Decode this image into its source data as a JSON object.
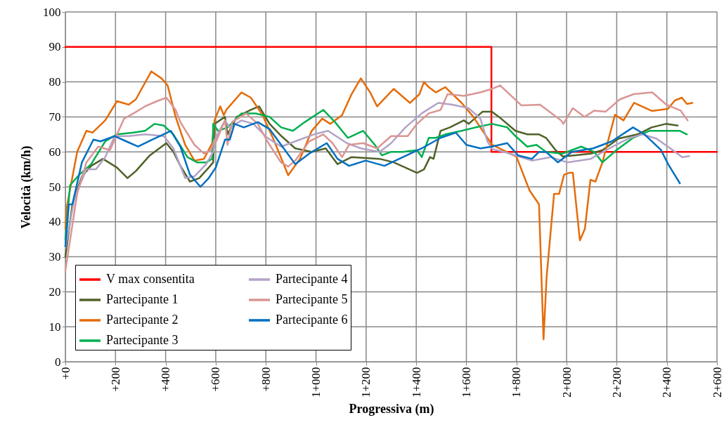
{
  "chart_data": {
    "type": "line",
    "xlabel": "Progressiva (m)",
    "ylabel": "Velocità (km/h)",
    "xlim": [
      0,
      2600
    ],
    "ylim": [
      0,
      100
    ],
    "xticks": [
      {
        "value": 0,
        "label": "+0"
      },
      {
        "value": 200,
        "label": "+200"
      },
      {
        "value": 400,
        "label": "+400"
      },
      {
        "value": 600,
        "label": "+600"
      },
      {
        "value": 800,
        "label": "+800"
      },
      {
        "value": 1000,
        "label": "1+000"
      },
      {
        "value": 1200,
        "label": "1+200"
      },
      {
        "value": 1400,
        "label": "1+400"
      },
      {
        "value": 1600,
        "label": "1+600"
      },
      {
        "value": 1800,
        "label": "1+800"
      },
      {
        "value": 2000,
        "label": "2+000"
      },
      {
        "value": 2200,
        "label": "2+200"
      },
      {
        "value": 2400,
        "label": "2+400"
      },
      {
        "value": 2600,
        "label": "2+600"
      }
    ],
    "yticks": [
      0,
      10,
      20,
      30,
      40,
      50,
      60,
      70,
      80,
      90,
      100
    ],
    "grid": true,
    "legend": "bottom left",
    "line_style": "solid",
    "series": [
      {
        "name": "V max consentita",
        "color": "#ff0000",
        "x": [
          0,
          1700,
          1700,
          2600
        ],
        "values": [
          90,
          90,
          60,
          60
        ]
      },
      {
        "name": "Partecipante 1",
        "color": "#4f6228",
        "x": [
          0,
          28,
          66,
          103,
          150,
          206,
          248,
          281,
          337,
          403,
          431,
          459,
          497,
          534,
          572,
          590,
          595,
          637,
          647,
          684,
          740,
          773,
          815,
          862,
          917,
          983,
          1039,
          1086,
          1142,
          1188,
          1254,
          1310,
          1357,
          1403,
          1431,
          1455,
          1469,
          1497,
          1534,
          1590,
          1609,
          1665,
          1702,
          1730,
          1796,
          1843,
          1890,
          1918,
          1956,
          1984,
          2030,
          2096,
          2143,
          2208,
          2283,
          2339,
          2396,
          2443
        ],
        "values": [
          30,
          45,
          53,
          56,
          58,
          55.5,
          52.5,
          54.5,
          59,
          62.5,
          60,
          56,
          51.5,
          52.5,
          55.5,
          57,
          68,
          70,
          65,
          70,
          72,
          73,
          68,
          64.5,
          61,
          60,
          61,
          56.5,
          58.5,
          58.3,
          58,
          57,
          55.5,
          54,
          55,
          58.5,
          58,
          66,
          67,
          69,
          68,
          71.5,
          71.5,
          70,
          66,
          65,
          65,
          64,
          60.5,
          58.7,
          59,
          59.5,
          60.5,
          63.8,
          65,
          67,
          68,
          67.5
        ]
      },
      {
        "name": "Partecipante 2",
        "color": "#e46c0a",
        "x": [
          0,
          5,
          47,
          84,
          108,
          159,
          206,
          253,
          281,
          343,
          384,
          408,
          440,
          478,
          515,
          553,
          586,
          595,
          618,
          632,
          642,
          703,
          740,
          787,
          834,
          889,
          936,
          983,
          1025,
          1057,
          1104,
          1142,
          1179,
          1216,
          1244,
          1310,
          1375,
          1413,
          1431,
          1450,
          1478,
          1516,
          1581,
          1628,
          1665,
          1703,
          1800,
          1852,
          1890,
          1908,
          1920,
          1950,
          1970,
          1990,
          2011,
          2025,
          2053,
          2073,
          2095,
          2115,
          2143,
          2193,
          2227,
          2269,
          2340,
          2404,
          2432,
          2460,
          2480,
          2502
        ],
        "values": [
          38,
          44,
          60,
          66,
          65.5,
          69,
          74.5,
          73.5,
          75,
          83,
          81,
          79,
          70,
          62,
          57.5,
          58,
          62.5,
          69,
          73,
          70.5,
          72,
          77,
          75.5,
          70.5,
          63,
          53.3,
          58,
          66,
          69.5,
          68,
          70.5,
          76.5,
          81,
          77,
          73,
          78,
          74,
          76.5,
          80,
          78.5,
          77,
          78.5,
          74,
          70,
          66,
          62,
          58.6,
          49,
          45,
          6.4,
          24,
          48,
          48,
          53.5,
          54,
          54,
          34.7,
          38,
          52,
          51.5,
          57,
          70.6,
          69,
          74,
          71.7,
          72.3,
          74.7,
          75.5,
          73.7,
          74
        ]
      },
      {
        "name": "Partecipante 3",
        "color": "#00b050",
        "x": [
          0,
          19,
          56,
          103,
          159,
          206,
          272,
          318,
          356,
          393,
          431,
          487,
          525,
          562,
          586,
          590,
          609,
          647,
          703,
          759,
          815,
          861,
          908,
          955,
          1029,
          1076,
          1127,
          1188,
          1235,
          1263,
          1300,
          1347,
          1403,
          1422,
          1450,
          1478,
          1516,
          1581,
          1637,
          1703,
          1763,
          1796,
          1843,
          1880,
          1918,
          1984,
          2058,
          2110,
          2143,
          2199,
          2265,
          2330,
          2396,
          2452,
          2480
        ],
        "values": [
          35,
          50.5,
          53.5,
          56.5,
          63,
          65,
          65.5,
          66,
          68,
          67.5,
          65,
          58.5,
          57,
          57,
          58,
          68,
          66,
          67,
          71,
          71,
          70,
          67,
          66,
          68.5,
          72,
          68.5,
          64,
          66,
          62,
          59,
          60,
          60,
          60.5,
          58.5,
          64,
          64,
          65,
          66,
          67,
          68,
          67,
          64.5,
          61.5,
          62,
          60,
          59.5,
          61.5,
          60,
          57,
          60.5,
          64,
          66,
          66,
          66,
          65
        ]
      },
      {
        "name": "Partecipante 4",
        "color": "#b3a2c7",
        "x": [
          0,
          37,
          84,
          122,
          159,
          197,
          253,
          318,
          393,
          431,
          478,
          515,
          562,
          590,
          600,
          637,
          656,
          703,
          750,
          806,
          861,
          917,
          992,
          1048,
          1123,
          1179,
          1254,
          1300,
          1357,
          1422,
          1488,
          1544,
          1609,
          1656,
          1684,
          1703,
          1750,
          1796,
          1862,
          1937,
          2002,
          2096,
          2171,
          2246,
          2302,
          2358,
          2414,
          2461,
          2489
        ],
        "values": [
          32.5,
          47,
          55,
          55,
          58.5,
          64.5,
          64.5,
          65,
          64.5,
          61,
          52.5,
          53,
          56.5,
          60,
          64,
          69,
          67,
          69,
          68,
          64,
          61.5,
          63,
          65,
          66,
          62.5,
          61,
          60,
          62.5,
          67,
          71,
          74,
          73.5,
          72.5,
          69.5,
          63,
          60.8,
          60,
          59,
          57.5,
          58.5,
          57,
          58,
          61,
          63.8,
          65,
          63.8,
          61,
          58.5,
          58.8
        ]
      },
      {
        "name": "Partecipante 5",
        "color": "#d99694",
        "x": [
          0,
          47,
          84,
          131,
          178,
          206,
          234,
          272,
          318,
          366,
          403,
          440,
          459,
          515,
          553,
          581,
          595,
          600,
          637,
          647,
          665,
          721,
          768,
          806,
          860,
          889,
          917,
          973,
          1029,
          1066,
          1104,
          1132,
          1188,
          1244,
          1300,
          1366,
          1403,
          1450,
          1497,
          1525,
          1590,
          1656,
          1702,
          1735,
          1819,
          1894,
          1978,
          1987,
          2025,
          2072,
          2110,
          2156,
          2212,
          2268,
          2342,
          2398,
          2455,
          2483
        ],
        "values": [
          26,
          48,
          57,
          61.5,
          60.5,
          65,
          69.5,
          71,
          73,
          74.5,
          75.5,
          72,
          68.5,
          62,
          59.5,
          60.5,
          63.5,
          62.7,
          69,
          62,
          68.5,
          71,
          68,
          63,
          57,
          55.8,
          57.5,
          63,
          65,
          62.5,
          58.5,
          62,
          62.5,
          61,
          64.5,
          64.5,
          68,
          71,
          72,
          76.5,
          76,
          77,
          78,
          79,
          73.3,
          73.5,
          69,
          68,
          72.5,
          70,
          71.8,
          71.5,
          75,
          76.5,
          77,
          73.5,
          71.8,
          69
        ]
      },
      {
        "name": "Partecipante 6",
        "color": "#0070c0",
        "x": [
          0,
          14,
          28,
          66,
          112,
          140,
          197,
          243,
          290,
          346,
          421,
          459,
          497,
          539,
          572,
          600,
          637,
          656,
          675,
          712,
          768,
          815,
          861,
          917,
          973,
          1043,
          1086,
          1132,
          1198,
          1273,
          1347,
          1422,
          1497,
          1558,
          1600,
          1656,
          1702,
          1763,
          1806,
          1862,
          1890,
          1918,
          1965,
          2021,
          2106,
          2180,
          2265,
          2311,
          2377,
          2405,
          2452
        ],
        "values": [
          33,
          45,
          45,
          57,
          63.5,
          63,
          64.5,
          63,
          61.5,
          63.5,
          66,
          61.5,
          53.5,
          50,
          52.5,
          55.5,
          63.5,
          63.5,
          68,
          67,
          68.5,
          66.5,
          62,
          56.5,
          59.5,
          62.5,
          58,
          56,
          57.5,
          56,
          58.5,
          61,
          64,
          65.5,
          62,
          61,
          61.5,
          62.5,
          59,
          58,
          60,
          60,
          57,
          60,
          61,
          63,
          67,
          65,
          60.5,
          56.5,
          51
        ]
      }
    ]
  }
}
